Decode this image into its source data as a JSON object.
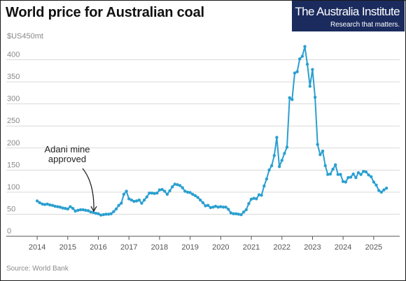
{
  "title": "World price for Australian coal",
  "brand": {
    "name": "The Australia Institute",
    "tagline": "Research that matters."
  },
  "source": "Source: World Bank",
  "colors": {
    "line": "#2a9fd0",
    "grid": "#d9d9d9",
    "axis_text": "#555555",
    "brand_bg": "#1b2b5e"
  },
  "chart_data": {
    "type": "line",
    "title": "World price for Australian coal",
    "ylabel": "$US450mt",
    "xlabel": "",
    "ylim": [
      0,
      450
    ],
    "xlim": [
      2013.7,
      2025.85
    ],
    "yticks": [
      0,
      50,
      100,
      150,
      200,
      250,
      300,
      350,
      400
    ],
    "xticks": [
      2014,
      2015,
      2016,
      2017,
      2018,
      2019,
      2020,
      2021,
      2022,
      2023,
      2024,
      2025
    ],
    "grid": true,
    "annotation": {
      "text": [
        "Adani mine",
        "approved"
      ],
      "x": 2015.85,
      "y": 52
    },
    "series": [
      {
        "color": "#2a9fd0",
        "points": [
          [
            2014.0,
            80
          ],
          [
            2014.083,
            76
          ],
          [
            2014.167,
            73
          ],
          [
            2014.25,
            72
          ],
          [
            2014.333,
            73
          ],
          [
            2014.417,
            71
          ],
          [
            2014.5,
            70
          ],
          [
            2014.583,
            68
          ],
          [
            2014.667,
            67
          ],
          [
            2014.75,
            66
          ],
          [
            2014.833,
            64
          ],
          [
            2014.917,
            63
          ],
          [
            2015.0,
            62
          ],
          [
            2015.083,
            67
          ],
          [
            2015.167,
            63
          ],
          [
            2015.25,
            57
          ],
          [
            2015.333,
            59
          ],
          [
            2015.417,
            60
          ],
          [
            2015.5,
            60
          ],
          [
            2015.583,
            59
          ],
          [
            2015.667,
            58
          ],
          [
            2015.75,
            55
          ],
          [
            2015.833,
            54
          ],
          [
            2015.917,
            52
          ],
          [
            2016.0,
            51
          ],
          [
            2016.083,
            48
          ],
          [
            2016.167,
            49
          ],
          [
            2016.25,
            50
          ],
          [
            2016.333,
            50
          ],
          [
            2016.417,
            51
          ],
          [
            2016.5,
            56
          ],
          [
            2016.583,
            62
          ],
          [
            2016.667,
            70
          ],
          [
            2016.75,
            75
          ],
          [
            2016.833,
            95
          ],
          [
            2016.917,
            102
          ],
          [
            2017.0,
            85
          ],
          [
            2017.083,
            82
          ],
          [
            2017.167,
            79
          ],
          [
            2017.25,
            80
          ],
          [
            2017.333,
            82
          ],
          [
            2017.417,
            75
          ],
          [
            2017.5,
            82
          ],
          [
            2017.583,
            89
          ],
          [
            2017.667,
            98
          ],
          [
            2017.75,
            98
          ],
          [
            2017.833,
            97
          ],
          [
            2017.917,
            98
          ],
          [
            2018.0,
            105
          ],
          [
            2018.083,
            106
          ],
          [
            2018.167,
            102
          ],
          [
            2018.25,
            95
          ],
          [
            2018.333,
            103
          ],
          [
            2018.417,
            112
          ],
          [
            2018.5,
            118
          ],
          [
            2018.583,
            117
          ],
          [
            2018.667,
            115
          ],
          [
            2018.75,
            110
          ],
          [
            2018.833,
            102
          ],
          [
            2018.917,
            100
          ],
          [
            2019.0,
            99
          ],
          [
            2019.083,
            95
          ],
          [
            2019.167,
            92
          ],
          [
            2019.25,
            88
          ],
          [
            2019.333,
            82
          ],
          [
            2019.417,
            76
          ],
          [
            2019.5,
            69
          ],
          [
            2019.583,
            70
          ],
          [
            2019.667,
            65
          ],
          [
            2019.75,
            66
          ],
          [
            2019.833,
            68
          ],
          [
            2019.917,
            66
          ],
          [
            2020.0,
            67
          ],
          [
            2020.083,
            66
          ],
          [
            2020.167,
            66
          ],
          [
            2020.25,
            61
          ],
          [
            2020.333,
            53
          ],
          [
            2020.417,
            51
          ],
          [
            2020.5,
            51
          ],
          [
            2020.583,
            50
          ],
          [
            2020.667,
            49
          ],
          [
            2020.75,
            55
          ],
          [
            2020.833,
            60
          ],
          [
            2020.917,
            74
          ],
          [
            2021.0,
            84
          ],
          [
            2021.083,
            86
          ],
          [
            2021.167,
            85
          ],
          [
            2021.25,
            94
          ],
          [
            2021.333,
            93
          ],
          [
            2021.417,
            114
          ],
          [
            2021.5,
            130
          ],
          [
            2021.583,
            150
          ],
          [
            2021.667,
            160
          ],
          [
            2021.75,
            183
          ],
          [
            2021.833,
            224
          ],
          [
            2021.917,
            158
          ],
          [
            2022.0,
            172
          ],
          [
            2022.083,
            188
          ],
          [
            2022.167,
            202
          ],
          [
            2022.25,
            314
          ],
          [
            2022.333,
            310
          ],
          [
            2022.417,
            370
          ],
          [
            2022.5,
            373
          ],
          [
            2022.583,
            402
          ],
          [
            2022.667,
            408
          ],
          [
            2022.75,
            430
          ],
          [
            2022.833,
            390
          ],
          [
            2022.917,
            340
          ],
          [
            2023.0,
            378
          ],
          [
            2023.083,
            315
          ],
          [
            2023.167,
            208
          ],
          [
            2023.25,
            185
          ],
          [
            2023.333,
            193
          ],
          [
            2023.417,
            160
          ],
          [
            2023.5,
            140
          ],
          [
            2023.583,
            141
          ],
          [
            2023.667,
            152
          ],
          [
            2023.75,
            162
          ],
          [
            2023.833,
            140
          ],
          [
            2023.917,
            140
          ],
          [
            2024.0,
            124
          ],
          [
            2024.083,
            123
          ],
          [
            2024.167,
            133
          ],
          [
            2024.25,
            134
          ],
          [
            2024.333,
            141
          ],
          [
            2024.417,
            133
          ],
          [
            2024.5,
            144
          ],
          [
            2024.583,
            140
          ],
          [
            2024.667,
            147
          ],
          [
            2024.75,
            146
          ],
          [
            2024.833,
            139
          ],
          [
            2024.917,
            135
          ],
          [
            2025.0,
            123
          ],
          [
            2025.083,
            116
          ],
          [
            2025.167,
            104
          ],
          [
            2025.25,
            100
          ],
          [
            2025.333,
            105
          ],
          [
            2025.417,
            109
          ]
        ]
      }
    ]
  }
}
